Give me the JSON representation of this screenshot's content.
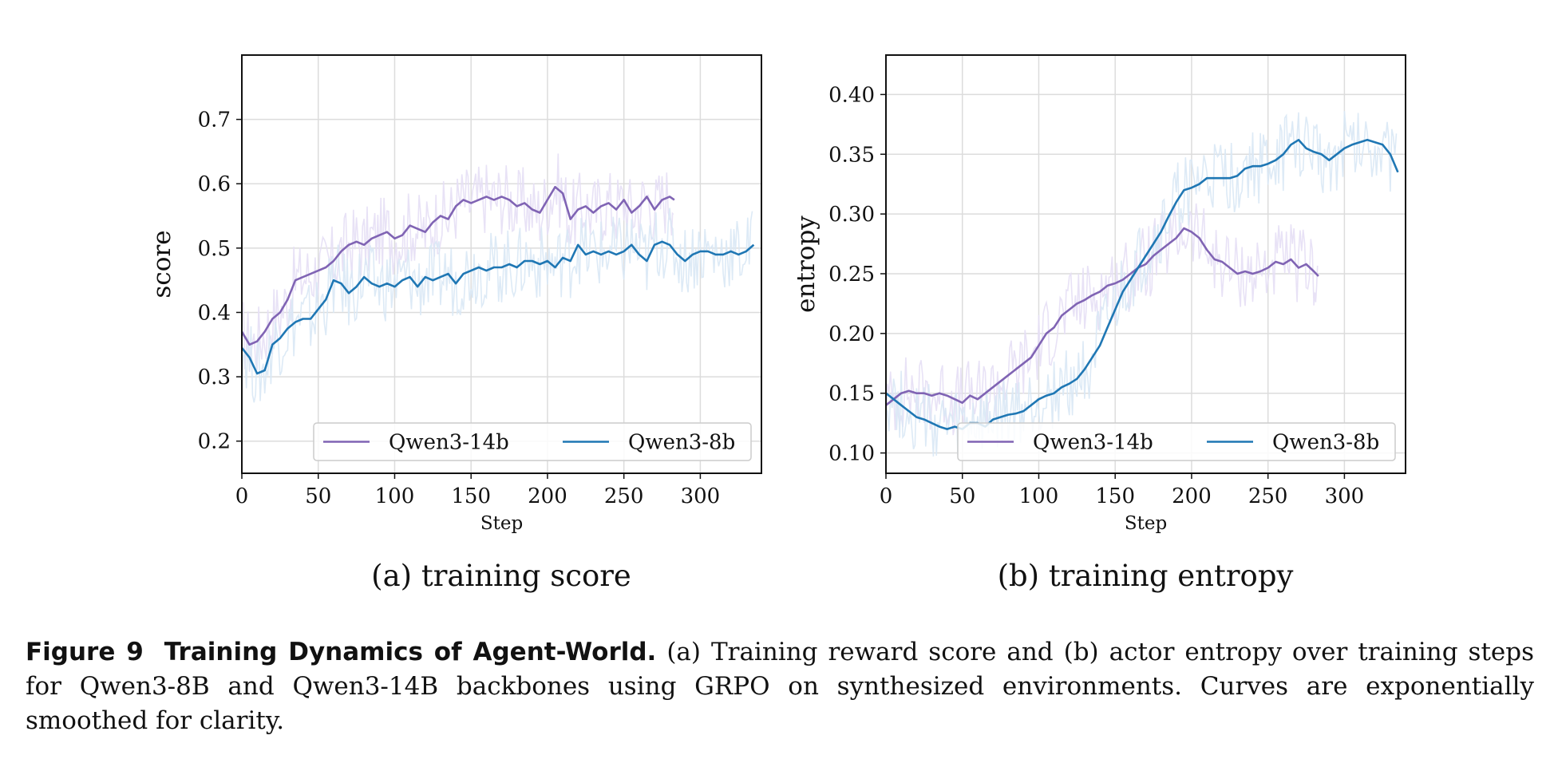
{
  "chart_data": [
    {
      "type": "line",
      "subcaption": "(a) training score",
      "xlabel": "Step",
      "ylabel": "score",
      "xlim": [
        0,
        340
      ],
      "ylim": [
        0.15,
        0.8
      ],
      "xticks": [
        0,
        50,
        100,
        150,
        200,
        250,
        300
      ],
      "yticks": [
        0.2,
        0.3,
        0.4,
        0.5,
        0.6,
        0.7
      ],
      "grid": true,
      "legend_position": "lower-right",
      "series": [
        {
          "name": "Qwen3-14b",
          "color": "#8064b4",
          "raw_color": "#e6dff5",
          "x": [
            0,
            5,
            10,
            15,
            20,
            25,
            30,
            35,
            40,
            45,
            50,
            55,
            60,
            65,
            70,
            75,
            80,
            85,
            90,
            95,
            100,
            105,
            110,
            115,
            120,
            125,
            130,
            135,
            140,
            145,
            150,
            155,
            160,
            165,
            170,
            175,
            180,
            185,
            190,
            195,
            200,
            205,
            210,
            215,
            220,
            225,
            230,
            235,
            240,
            245,
            250,
            255,
            260,
            265,
            270,
            275,
            280,
            283
          ],
          "values": [
            0.37,
            0.35,
            0.355,
            0.37,
            0.39,
            0.4,
            0.42,
            0.45,
            0.455,
            0.46,
            0.465,
            0.47,
            0.48,
            0.495,
            0.505,
            0.51,
            0.505,
            0.515,
            0.52,
            0.525,
            0.515,
            0.52,
            0.535,
            0.53,
            0.525,
            0.54,
            0.55,
            0.545,
            0.565,
            0.575,
            0.57,
            0.575,
            0.58,
            0.575,
            0.58,
            0.575,
            0.565,
            0.57,
            0.56,
            0.555,
            0.575,
            0.595,
            0.585,
            0.545,
            0.56,
            0.565,
            0.555,
            0.565,
            0.57,
            0.56,
            0.575,
            0.555,
            0.565,
            0.58,
            0.56,
            0.575,
            0.58,
            0.575
          ]
        },
        {
          "name": "Qwen3-8b",
          "color": "#1f77b4",
          "raw_color": "#d9e8f5",
          "x": [
            0,
            5,
            10,
            15,
            20,
            25,
            30,
            35,
            40,
            45,
            50,
            55,
            60,
            65,
            70,
            75,
            80,
            85,
            90,
            95,
            100,
            105,
            110,
            115,
            120,
            125,
            130,
            135,
            140,
            145,
            150,
            155,
            160,
            165,
            170,
            175,
            180,
            185,
            190,
            195,
            200,
            205,
            210,
            215,
            220,
            225,
            230,
            235,
            240,
            245,
            250,
            255,
            260,
            265,
            270,
            275,
            280,
            285,
            290,
            295,
            300,
            305,
            310,
            315,
            320,
            325,
            330,
            335
          ],
          "values": [
            0.345,
            0.33,
            0.305,
            0.31,
            0.35,
            0.36,
            0.375,
            0.385,
            0.39,
            0.39,
            0.405,
            0.42,
            0.45,
            0.445,
            0.43,
            0.44,
            0.455,
            0.445,
            0.44,
            0.445,
            0.44,
            0.45,
            0.455,
            0.44,
            0.455,
            0.45,
            0.455,
            0.46,
            0.445,
            0.46,
            0.465,
            0.47,
            0.465,
            0.47,
            0.47,
            0.475,
            0.47,
            0.48,
            0.48,
            0.475,
            0.48,
            0.47,
            0.485,
            0.48,
            0.505,
            0.49,
            0.495,
            0.49,
            0.495,
            0.49,
            0.495,
            0.505,
            0.49,
            0.48,
            0.505,
            0.51,
            0.505,
            0.49,
            0.48,
            0.49,
            0.495,
            0.495,
            0.49,
            0.49,
            0.495,
            0.49,
            0.495,
            0.505
          ]
        }
      ]
    },
    {
      "type": "line",
      "subcaption": "(b) training entropy",
      "xlabel": "Step",
      "ylabel": "entropy",
      "xlim": [
        0,
        340
      ],
      "ylim": [
        0.083,
        0.433
      ],
      "xticks": [
        0,
        50,
        100,
        150,
        200,
        250,
        300
      ],
      "yticks": [
        0.1,
        0.15,
        0.2,
        0.25,
        0.3,
        0.35,
        0.4
      ],
      "grid": true,
      "legend_position": "lower-right",
      "series": [
        {
          "name": "Qwen3-14b",
          "color": "#8064b4",
          "raw_color": "#e6dff5",
          "x": [
            0,
            5,
            10,
            15,
            20,
            25,
            30,
            35,
            40,
            45,
            50,
            55,
            60,
            65,
            70,
            75,
            80,
            85,
            90,
            95,
            100,
            105,
            110,
            115,
            120,
            125,
            130,
            135,
            140,
            145,
            150,
            155,
            160,
            165,
            170,
            175,
            180,
            185,
            190,
            195,
            200,
            205,
            210,
            215,
            220,
            225,
            230,
            235,
            240,
            245,
            250,
            255,
            260,
            265,
            270,
            275,
            280,
            283
          ],
          "values": [
            0.14,
            0.145,
            0.15,
            0.152,
            0.15,
            0.15,
            0.148,
            0.15,
            0.148,
            0.145,
            0.142,
            0.148,
            0.145,
            0.15,
            0.155,
            0.16,
            0.165,
            0.17,
            0.175,
            0.18,
            0.19,
            0.2,
            0.205,
            0.215,
            0.22,
            0.225,
            0.228,
            0.232,
            0.235,
            0.24,
            0.242,
            0.245,
            0.25,
            0.255,
            0.258,
            0.265,
            0.27,
            0.275,
            0.28,
            0.288,
            0.285,
            0.28,
            0.27,
            0.262,
            0.26,
            0.255,
            0.25,
            0.252,
            0.25,
            0.252,
            0.255,
            0.26,
            0.258,
            0.262,
            0.255,
            0.258,
            0.252,
            0.248
          ]
        },
        {
          "name": "Qwen3-8b",
          "color": "#1f77b4",
          "raw_color": "#d9e8f5",
          "x": [
            0,
            5,
            10,
            15,
            20,
            25,
            30,
            35,
            40,
            45,
            50,
            55,
            60,
            65,
            70,
            75,
            80,
            85,
            90,
            95,
            100,
            105,
            110,
            115,
            120,
            125,
            130,
            135,
            140,
            145,
            150,
            155,
            160,
            165,
            170,
            175,
            180,
            185,
            190,
            195,
            200,
            205,
            210,
            215,
            220,
            225,
            230,
            235,
            240,
            245,
            250,
            255,
            260,
            265,
            270,
            275,
            280,
            285,
            290,
            295,
            300,
            305,
            310,
            315,
            320,
            325,
            330,
            335
          ],
          "values": [
            0.15,
            0.145,
            0.14,
            0.135,
            0.13,
            0.128,
            0.125,
            0.122,
            0.12,
            0.122,
            0.12,
            0.125,
            0.125,
            0.122,
            0.128,
            0.13,
            0.132,
            0.133,
            0.135,
            0.14,
            0.145,
            0.148,
            0.15,
            0.155,
            0.158,
            0.162,
            0.17,
            0.18,
            0.19,
            0.205,
            0.22,
            0.235,
            0.245,
            0.255,
            0.265,
            0.275,
            0.285,
            0.298,
            0.31,
            0.32,
            0.322,
            0.325,
            0.33,
            0.33,
            0.33,
            0.33,
            0.332,
            0.338,
            0.34,
            0.34,
            0.342,
            0.345,
            0.35,
            0.358,
            0.362,
            0.355,
            0.352,
            0.35,
            0.345,
            0.35,
            0.355,
            0.358,
            0.36,
            0.362,
            0.36,
            0.358,
            0.35,
            0.335
          ]
        }
      ]
    }
  ],
  "caption": {
    "label": "Figure 9",
    "title": "Training Dynamics of Agent-World.",
    "text": "(a) Training reward score and (b) actor entropy over training steps for Qwen3-8B and Qwen3-14B backbones using GRPO on synthesized environments. Curves are exponentially smoothed for clarity."
  }
}
